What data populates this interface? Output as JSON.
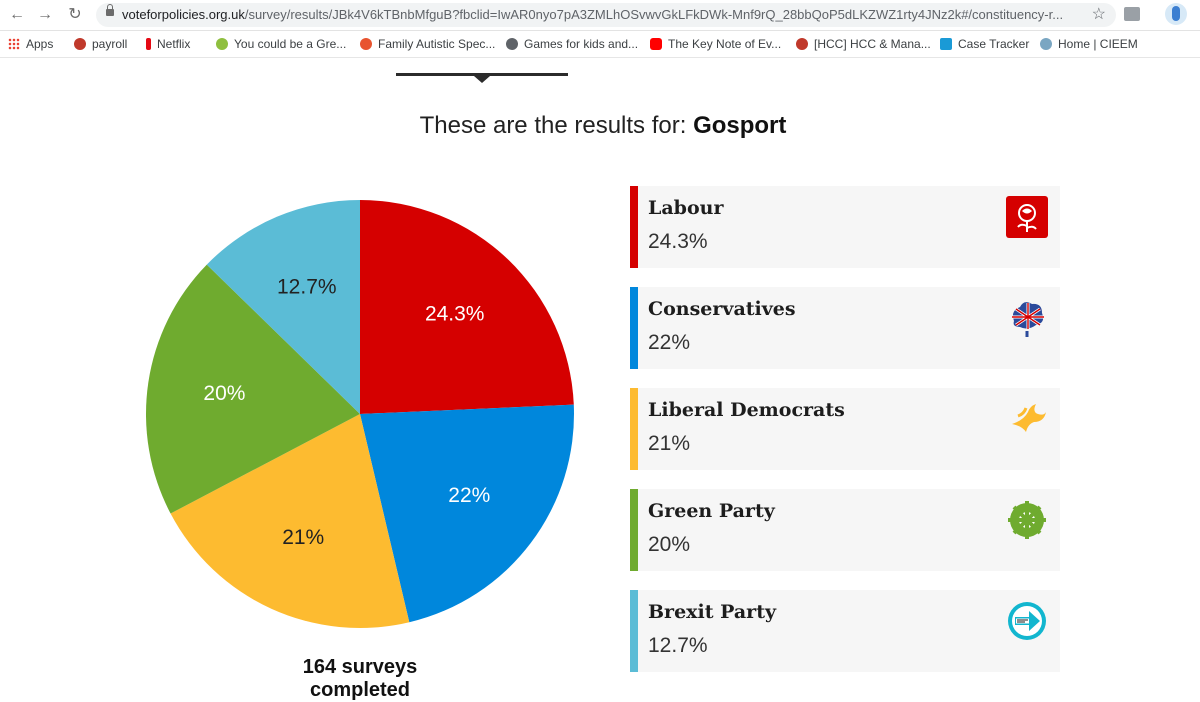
{
  "browser": {
    "url_host": "voteforpolicies.org.uk",
    "url_path": "/survey/results/JBk4V6kTBnbMfguB?fbclid=IwAR0nyo7pA3ZMLhOSvwvGkLFkDWk-Mnf9rQ_28bbQoP5dLKZWZ1rty4JNz2k#/constituency-r...",
    "bookmarks": [
      "Apps",
      "payroll",
      "Netflix",
      "You could be a Gre...",
      "Family Autistic Spec...",
      "Games for kids and...",
      "The Key Note of Ev...",
      "[HCC] HCC & Mana...",
      "Case Tracker",
      "Home | CIEEM"
    ]
  },
  "page": {
    "heading_prefix": "These are the results for:",
    "constituency": "Gosport",
    "surveys_completed": "164 surveys completed"
  },
  "colors": {
    "labour": "#d50000",
    "conservatives": "#0087dc",
    "libdem": "#fdbb30",
    "green": "#6fab2f",
    "brexit": "#5bbcd6"
  },
  "chart_data": {
    "type": "pie",
    "start_angle_deg": 0,
    "direction": "clockwise",
    "series": [
      {
        "name": "Labour",
        "value": 24.3,
        "label": "24.3%",
        "color": "#d50000",
        "label_color": "#ffffff",
        "logo": "labour-rose-icon"
      },
      {
        "name": "Conservatives",
        "value": 22,
        "label": "22%",
        "color": "#0087dc",
        "label_color": "#ffffff",
        "logo": "conservative-tree-icon"
      },
      {
        "name": "Liberal Democrats",
        "value": 21,
        "label": "21%",
        "color": "#fdbb30",
        "label_color": "#222222",
        "logo": "libdem-bird-icon"
      },
      {
        "name": "Green Party",
        "value": 20,
        "label": "20%",
        "color": "#6fab2f",
        "label_color": "#ffffff",
        "logo": "green-tree-icon"
      },
      {
        "name": "Brexit Party",
        "value": 12.7,
        "label": "12.7%",
        "color": "#5bbcd6",
        "label_color": "#222222",
        "logo": "brexit-arrow-icon"
      }
    ]
  }
}
